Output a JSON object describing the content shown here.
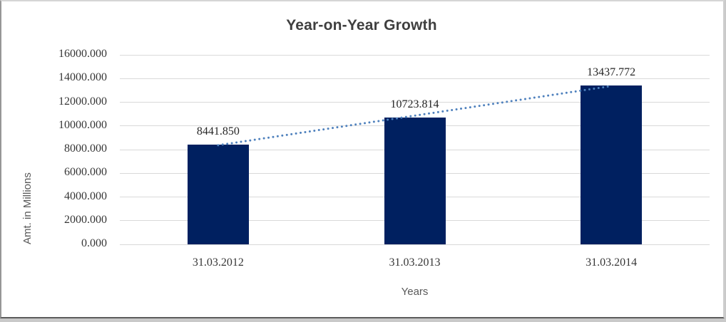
{
  "chart_data": {
    "type": "bar",
    "title": "Year-on-Year Growth",
    "categories": [
      "31.03.2012",
      "31.03.2013",
      "31.03.2014"
    ],
    "values": [
      8441.85,
      10723.814,
      13437.772
    ],
    "data_labels": [
      "8441.850",
      "10723.814",
      "13437.772"
    ],
    "xlabel": "Years",
    "ylabel": "Amt. in Millions",
    "ylim": [
      0,
      16000
    ],
    "y_ticks": [
      0,
      2000,
      4000,
      6000,
      8000,
      10000,
      12000,
      14000,
      16000
    ],
    "y_tick_labels": [
      "0.000",
      "2000.000",
      "4000.000",
      "6000.000",
      "8000.000",
      "10000.000",
      "12000.000",
      "14000.000",
      "16000.000"
    ],
    "grid": true,
    "legend": "none",
    "bar_color": "#002060",
    "gridline_color": "#d9d9d9",
    "trendline": {
      "type": "linear",
      "style": "dotted",
      "color": "#4f81bd"
    }
  }
}
